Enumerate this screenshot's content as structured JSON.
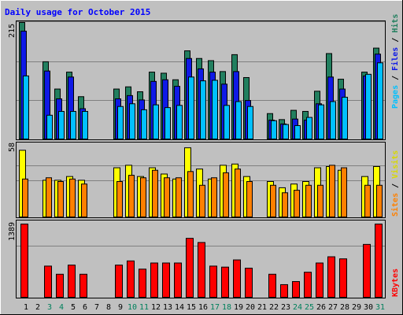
{
  "chart_data": [
    {
      "type": "bar",
      "panel": "hits-files-pages",
      "title": "Daily usage for October 2015",
      "categories": [
        "1",
        "2",
        "3",
        "4",
        "5",
        "6",
        "7",
        "8",
        "9",
        "10",
        "11",
        "12",
        "13",
        "14",
        "15",
        "16",
        "17",
        "18",
        "19",
        "20",
        "21",
        "22",
        "23",
        "24",
        "25",
        "26",
        "27",
        "28",
        "29",
        "30",
        "31"
      ],
      "ymax_label": "215",
      "ylim": [
        0,
        215
      ],
      "grid": true,
      "series": [
        {
          "name": "Hits",
          "color": "#227f5f",
          "values": [
            215,
            0,
            143,
            93,
            124,
            79,
            0,
            0,
            93,
            97,
            88,
            124,
            122,
            110,
            163,
            149,
            145,
            125,
            156,
            114,
            0,
            48,
            37,
            54,
            52,
            89,
            158,
            111,
            0,
            124,
            168
          ]
        },
        {
          "name": "Files",
          "color": "#0f1ae6",
          "values": [
            199,
            0,
            126,
            75,
            115,
            57,
            0,
            0,
            75,
            81,
            73,
            107,
            110,
            98,
            149,
            130,
            124,
            102,
            125,
            72,
            0,
            36,
            29,
            38,
            36,
            66,
            115,
            93,
            0,
            117,
            157
          ]
        },
        {
          "name": "Pages",
          "color": "#00c0ff",
          "values": [
            117,
            0,
            45,
            52,
            52,
            52,
            0,
            0,
            61,
            66,
            55,
            64,
            59,
            63,
            115,
            108,
            109,
            63,
            70,
            61,
            0,
            35,
            28,
            26,
            41,
            64,
            70,
            78,
            0,
            120,
            141
          ]
        }
      ]
    },
    {
      "type": "bar",
      "panel": "visits-sites",
      "categories": [
        "1",
        "2",
        "3",
        "4",
        "5",
        "6",
        "7",
        "8",
        "9",
        "10",
        "11",
        "12",
        "13",
        "14",
        "15",
        "16",
        "17",
        "18",
        "19",
        "20",
        "21",
        "22",
        "23",
        "24",
        "25",
        "26",
        "27",
        "28",
        "29",
        "30",
        "31"
      ],
      "ymax_label": "58",
      "ylim": [
        0,
        58
      ],
      "grid": true,
      "series": [
        {
          "name": "Visits",
          "color": "#ffff00",
          "values": [
            54,
            0,
            30,
            30,
            33,
            30,
            0,
            0,
            40,
            42,
            33,
            40,
            35,
            31,
            56,
            39,
            31,
            42,
            43,
            33,
            0,
            29,
            24,
            27,
            29,
            40,
            41,
            38,
            0,
            33,
            41
          ]
        },
        {
          "name": "Sites",
          "color": "#ff8000",
          "values": [
            31,
            0,
            32,
            29,
            31,
            27,
            0,
            0,
            29,
            34,
            32,
            38,
            32,
            32,
            37,
            26,
            32,
            36,
            39,
            29,
            0,
            26,
            20,
            22,
            26,
            26,
            42,
            40,
            0,
            26,
            26
          ]
        }
      ]
    },
    {
      "type": "bar",
      "panel": "kbytes",
      "categories": [
        "1",
        "2",
        "3",
        "4",
        "5",
        "6",
        "7",
        "8",
        "9",
        "10",
        "11",
        "12",
        "13",
        "14",
        "15",
        "16",
        "17",
        "18",
        "19",
        "20",
        "21",
        "22",
        "23",
        "24",
        "25",
        "26",
        "27",
        "28",
        "29",
        "30",
        "31"
      ],
      "ymax_label": "1389",
      "ylim": [
        0,
        1389
      ],
      "grid": true,
      "series": [
        {
          "name": "KBytes",
          "color": "#ff0000",
          "values": [
            1389,
            0,
            600,
            447,
            619,
            447,
            0,
            0,
            619,
            697,
            543,
            658,
            658,
            658,
            1121,
            1043,
            600,
            581,
            716,
            561,
            0,
            447,
            252,
            310,
            485,
            658,
            775,
            736,
            0,
            1007,
            1389
          ]
        }
      ]
    }
  ],
  "x_label_colors": {
    "weekday": "#000000",
    "weekend": "#00805c"
  },
  "weekend_days": [
    "3",
    "4",
    "10",
    "11",
    "17",
    "18",
    "24",
    "25",
    "31"
  ],
  "colors": {
    "background": "#c0c0c0",
    "title": "#0000ff",
    "bar_outline": "#000000",
    "grid": "#808080"
  }
}
